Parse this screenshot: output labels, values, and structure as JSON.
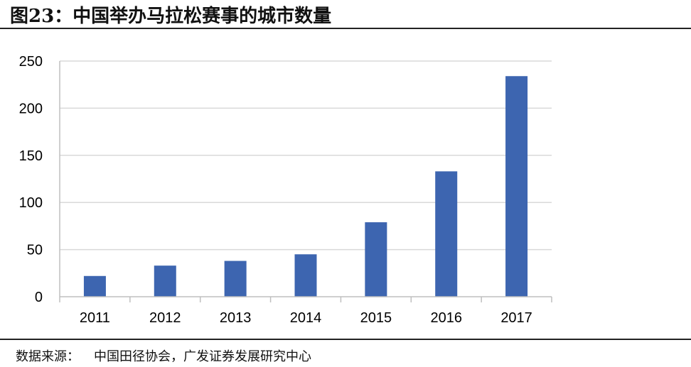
{
  "header": {
    "title": "图23：中国举办马拉松赛事的城市数量"
  },
  "footer": {
    "source_label": "数据来源：",
    "source_text": "中国田径协会，广发证券发展研究中心"
  },
  "colors": {
    "bar": "#3D65B0",
    "grid": "#D9D9D9",
    "axis": "#BFBFBF"
  },
  "chart_data": {
    "type": "bar",
    "title": "图23：中国举办马拉松赛事的城市数量",
    "categories": [
      "2011",
      "2012",
      "2013",
      "2014",
      "2015",
      "2016",
      "2017"
    ],
    "values": [
      22,
      33,
      38,
      45,
      79,
      133,
      234
    ],
    "ylim": [
      0,
      250
    ],
    "yticks": [
      0,
      50,
      100,
      150,
      200,
      250
    ],
    "xlabel": "",
    "ylabel": "",
    "grid": true,
    "legend": "none"
  }
}
